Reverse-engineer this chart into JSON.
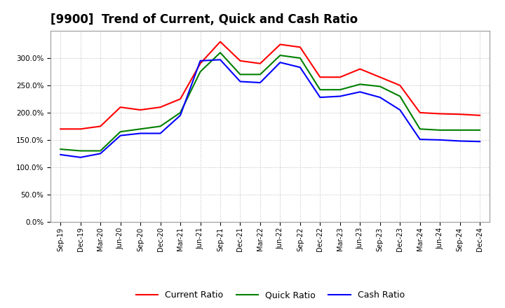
{
  "title": "[9900]  Trend of Current, Quick and Cash Ratio",
  "x_labels": [
    "Sep-19",
    "Dec-19",
    "Mar-20",
    "Jun-20",
    "Sep-20",
    "Dec-20",
    "Mar-21",
    "Jun-21",
    "Sep-21",
    "Dec-21",
    "Mar-22",
    "Jun-22",
    "Sep-22",
    "Dec-22",
    "Mar-23",
    "Jun-23",
    "Sep-23",
    "Dec-23",
    "Mar-24",
    "Jun-24",
    "Sep-24",
    "Dec-24"
  ],
  "current_ratio": [
    170,
    170,
    175,
    210,
    205,
    210,
    225,
    290,
    330,
    295,
    290,
    325,
    320,
    265,
    265,
    280,
    265,
    250,
    200,
    198,
    197,
    195
  ],
  "quick_ratio": [
    133,
    130,
    130,
    165,
    170,
    175,
    200,
    275,
    310,
    270,
    270,
    305,
    300,
    242,
    242,
    252,
    248,
    230,
    170,
    168,
    168,
    168
  ],
  "cash_ratio": [
    123,
    118,
    125,
    158,
    162,
    162,
    195,
    295,
    297,
    257,
    255,
    292,
    283,
    228,
    230,
    238,
    228,
    205,
    151,
    150,
    148,
    147
  ],
  "current_color": "#FF0000",
  "quick_color": "#008000",
  "cash_color": "#0000FF",
  "ylim": [
    0,
    350
  ],
  "yticks": [
    0,
    50,
    100,
    150,
    200,
    250,
    300
  ],
  "bg_color": "#ffffff",
  "plot_bg_color": "#ffffff",
  "grid_color": "#aaaaaa",
  "title_fontsize": 12,
  "legend_labels": [
    "Current Ratio",
    "Quick Ratio",
    "Cash Ratio"
  ]
}
